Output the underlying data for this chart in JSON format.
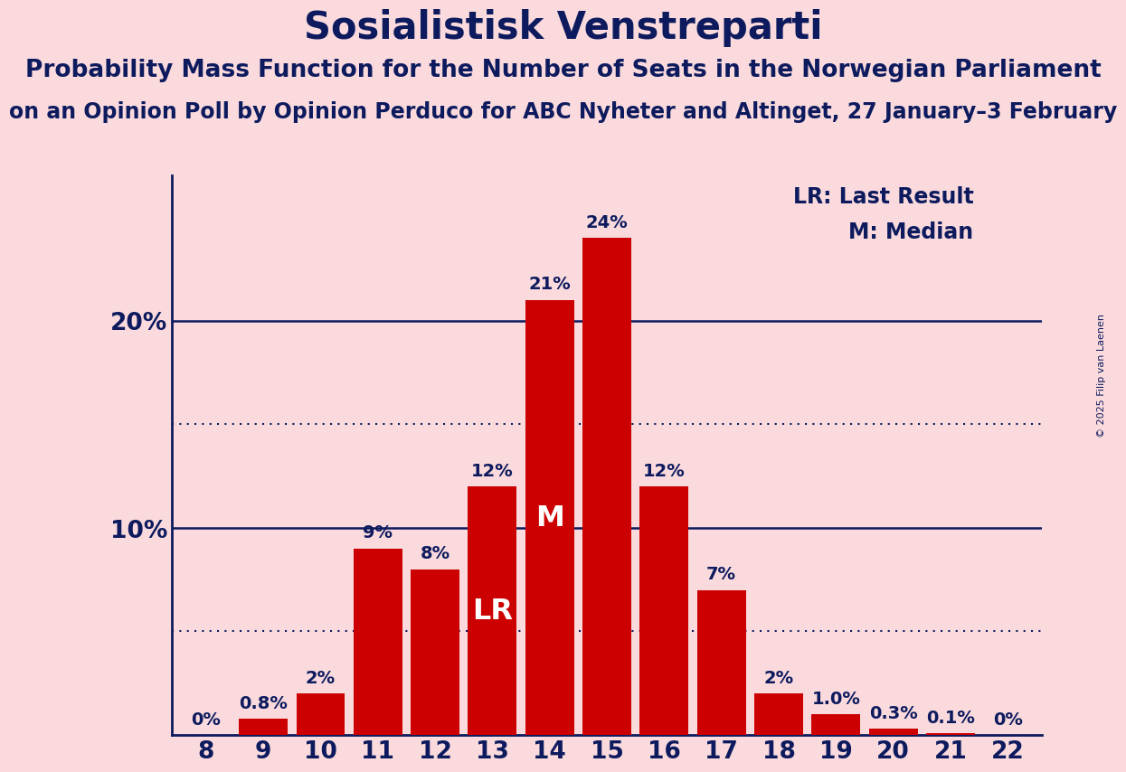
{
  "title": "Sosialistisk Venstreparti",
  "subtitle1": "Probability Mass Function for the Number of Seats in the Norwegian Parliament",
  "subtitle2": "on an Opinion Poll by Opinion Perduco for ABC Nyheter and Altinget, 27 January–3 February",
  "copyright": "© 2025 Filip van Laenen",
  "categories": [
    8,
    9,
    10,
    11,
    12,
    13,
    14,
    15,
    16,
    17,
    18,
    19,
    20,
    21,
    22
  ],
  "values": [
    0.0,
    0.8,
    2.0,
    9.0,
    8.0,
    12.0,
    21.0,
    24.0,
    12.0,
    7.0,
    2.0,
    1.0,
    0.3,
    0.1,
    0.0
  ],
  "labels": [
    "0%",
    "0.8%",
    "2%",
    "9%",
    "8%",
    "12%",
    "21%",
    "24%",
    "12%",
    "7%",
    "2%",
    "1.0%",
    "0.3%",
    "0.1%",
    "0%"
  ],
  "bar_color": "#CC0000",
  "background_color": "#FADADD",
  "text_color": "#0D1B5E",
  "axis_color": "#0D1B5E",
  "grid_color": "#0D1B5E",
  "LR_bar": 13,
  "M_bar": 14,
  "LR_label": "LR",
  "M_label": "M",
  "legend_LR": "LR: Last Result",
  "legend_M": "M: Median",
  "ylim": [
    0,
    27
  ],
  "title_fontsize": 30,
  "subtitle1_fontsize": 19,
  "subtitle2_fontsize": 17,
  "bar_label_fontsize": 14,
  "axis_label_fontsize": 19,
  "legend_fontsize": 17,
  "LR_M_fontsize": 23
}
